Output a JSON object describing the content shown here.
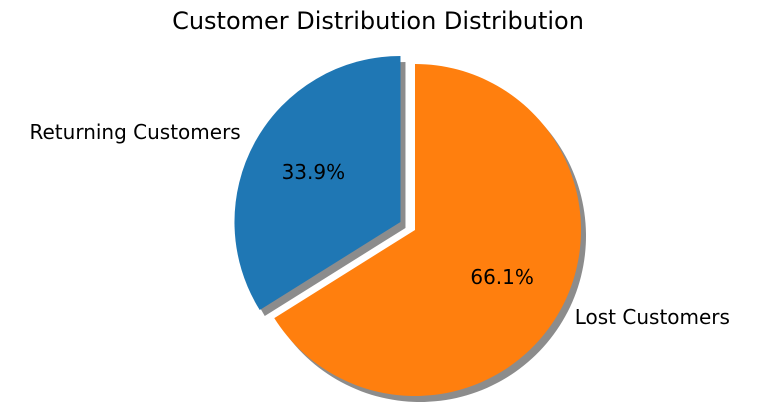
{
  "chart_data": {
    "type": "pie",
    "title": "Customer Distribution Distribution",
    "categories": [
      "Returning Customers",
      "Lost Customers"
    ],
    "values": [
      33.9,
      66.1
    ],
    "value_labels": [
      "33.9%",
      "66.1%"
    ],
    "colors": [
      "#1f77b4",
      "#ff7f0e"
    ],
    "shadow": true
  }
}
